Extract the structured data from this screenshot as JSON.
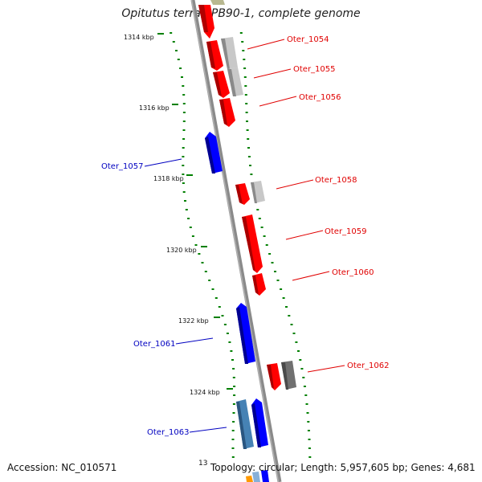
{
  "title": "Opitutus terrae PB90-1, complete genome",
  "accession": "Accession: NC_010571",
  "summary": "Topology: circular; Length: 5,957,605 bp; Genes: 4,681",
  "footer_fragment": "13",
  "scale_ticks": [
    "1314 kbp",
    "1316 kbp",
    "1318 kbp",
    "1320 kbp",
    "1322 kbp",
    "1324 kbp"
  ],
  "gene_labels": [
    {
      "name": "Oter_1054",
      "color": "#e00000"
    },
    {
      "name": "Oter_1055",
      "color": "#e00000"
    },
    {
      "name": "Oter_1056",
      "color": "#e00000"
    },
    {
      "name": "Oter_1057",
      "color": "#0000c0"
    },
    {
      "name": "Oter_1058",
      "color": "#e00000"
    },
    {
      "name": "Oter_1059",
      "color": "#e00000"
    },
    {
      "name": "Oter_1060",
      "color": "#e00000"
    },
    {
      "name": "Oter_1061",
      "color": "#0000c0"
    },
    {
      "name": "Oter_1062",
      "color": "#e00000"
    },
    {
      "name": "Oter_1063",
      "color": "#0000c0"
    }
  ],
  "colors": {
    "forward_gene": "#ff0000",
    "reverse_gene": "#0000ff",
    "rna_gene": "#c0c0c0",
    "dark_gene": "#707070",
    "steel_gene": "#4682b4",
    "backbone": "#808080",
    "tick": "#008000"
  }
}
